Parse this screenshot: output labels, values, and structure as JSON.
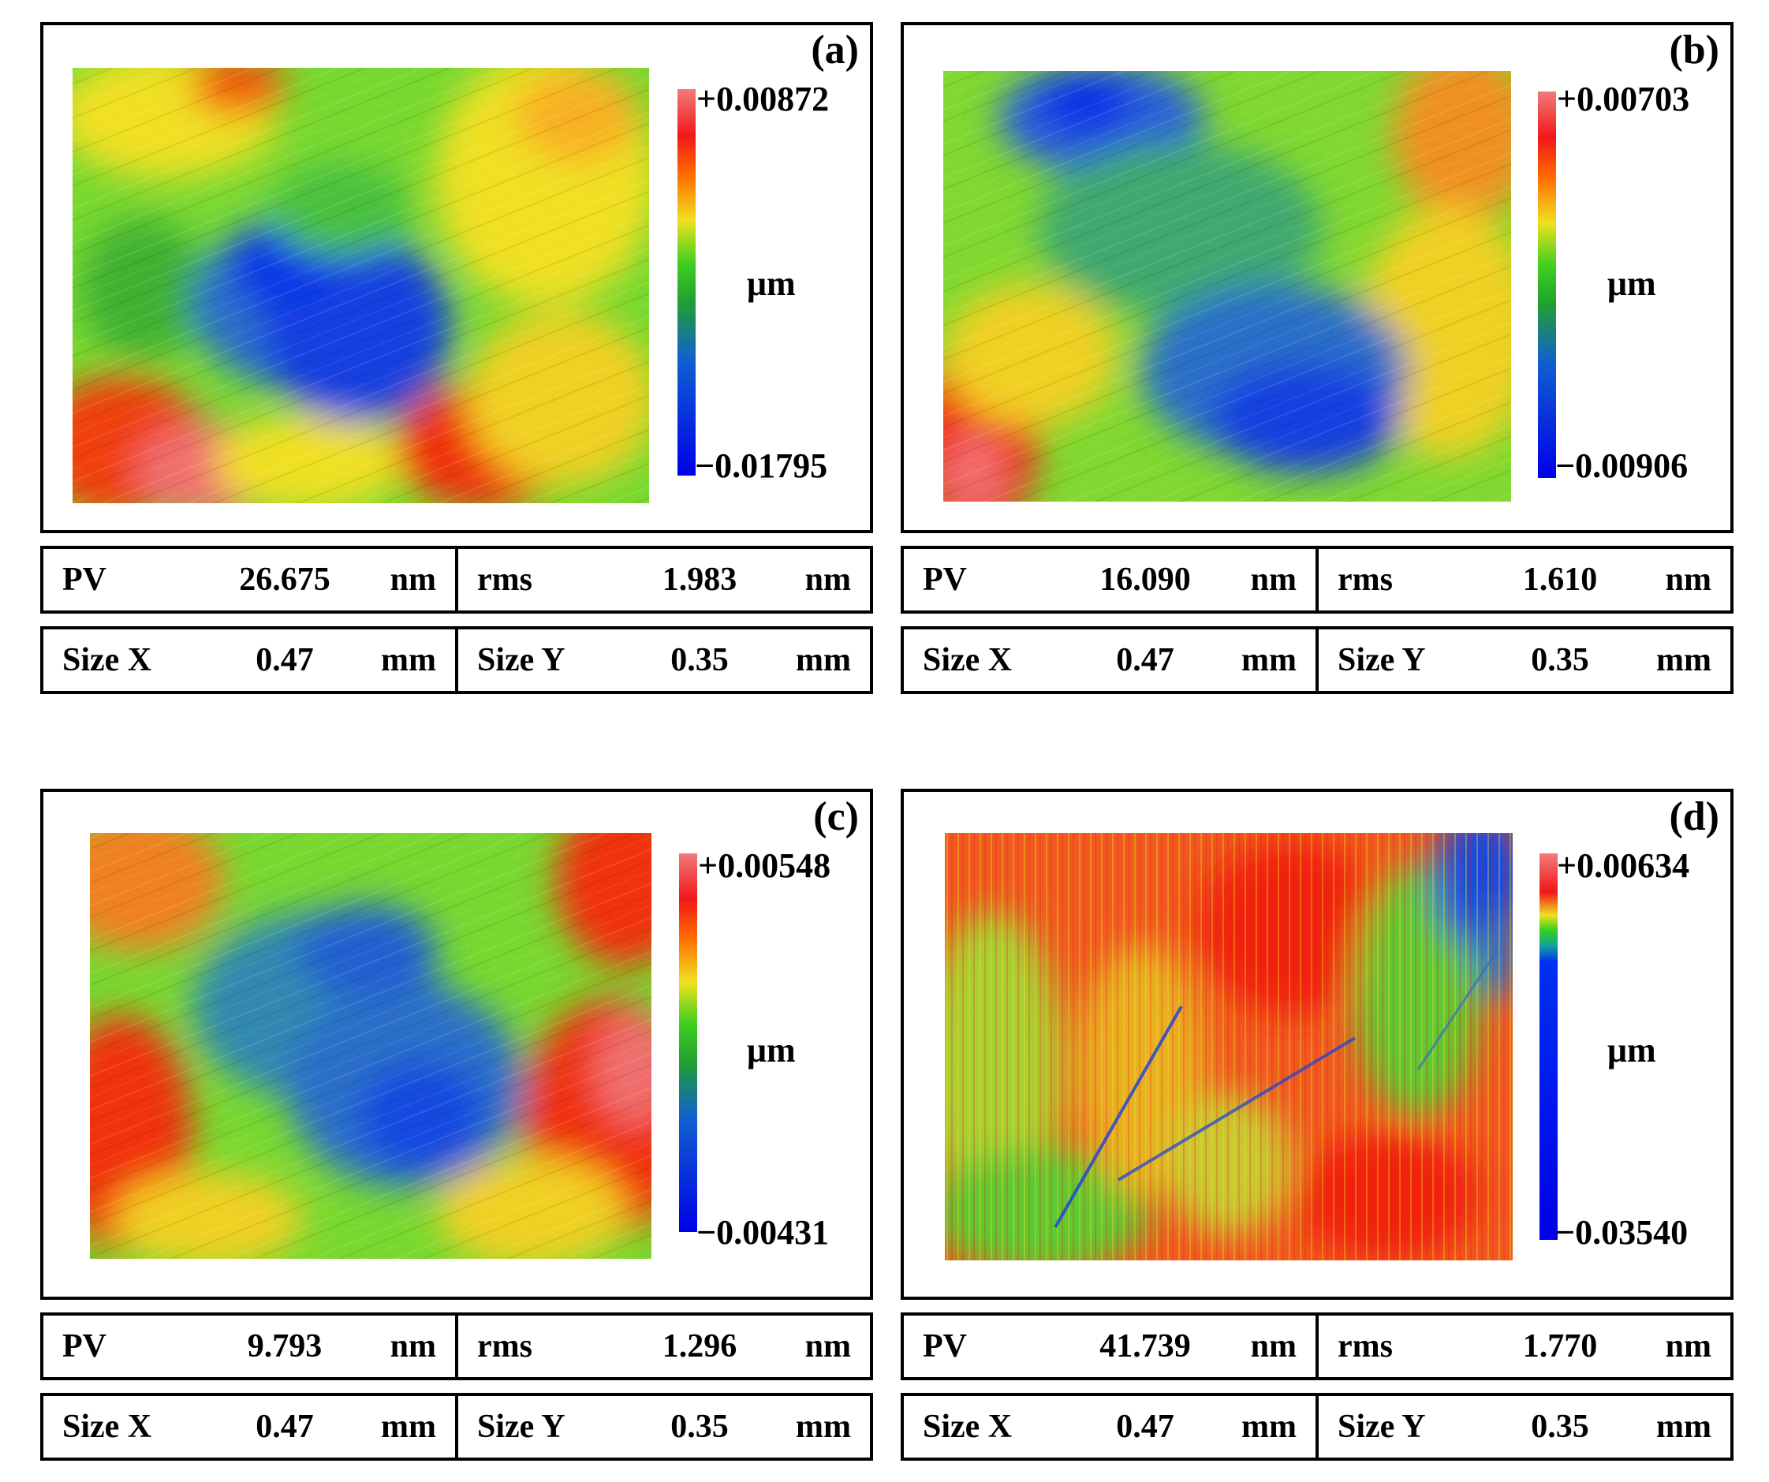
{
  "colorbar": {
    "unit": "μm",
    "stops": [
      "#0000e8",
      "#0a50e0",
      "#20a030",
      "#30d020",
      "#f0e020",
      "#ff7000",
      "#f02020",
      "#f07878"
    ]
  },
  "panels": [
    {
      "label": "(a)",
      "cb_max": "+0.00872",
      "cb_min": "−0.01795",
      "pv": {
        "name": "PV",
        "value": "26.675",
        "unit": "nm"
      },
      "rms": {
        "name": "rms",
        "value": "1.983",
        "unit": "nm"
      },
      "size_x": {
        "name": "Size X",
        "value": "0.47",
        "unit": "mm"
      },
      "size_y": {
        "name": "Size Y",
        "value": "0.35",
        "unit": "mm"
      }
    },
    {
      "label": "(b)",
      "cb_max": "+0.00703",
      "cb_min": "−0.00906",
      "pv": {
        "name": "PV",
        "value": "16.090",
        "unit": "nm"
      },
      "rms": {
        "name": "rms",
        "value": "1.610",
        "unit": "nm"
      },
      "size_x": {
        "name": "Size X",
        "value": "0.47",
        "unit": "mm"
      },
      "size_y": {
        "name": "Size Y",
        "value": "0.35",
        "unit": "mm"
      }
    },
    {
      "label": "(c)",
      "cb_max": "+0.00548",
      "cb_min": "−0.00431",
      "pv": {
        "name": "PV",
        "value": "9.793",
        "unit": "nm"
      },
      "rms": {
        "name": "rms",
        "value": "1.296",
        "unit": "nm"
      },
      "size_x": {
        "name": "Size X",
        "value": "0.47",
        "unit": "mm"
      },
      "size_y": {
        "name": "Size Y",
        "value": "0.35",
        "unit": "mm"
      }
    },
    {
      "label": "(d)",
      "cb_max": "+0.00634",
      "cb_min": "−0.03540",
      "pv": {
        "name": "PV",
        "value": "41.739",
        "unit": "nm"
      },
      "rms": {
        "name": "rms",
        "value": "1.770",
        "unit": "nm"
      },
      "size_x": {
        "name": "Size X",
        "value": "0.47",
        "unit": "mm"
      },
      "size_y": {
        "name": "Size Y",
        "value": "0.35",
        "unit": "mm"
      }
    }
  ]
}
